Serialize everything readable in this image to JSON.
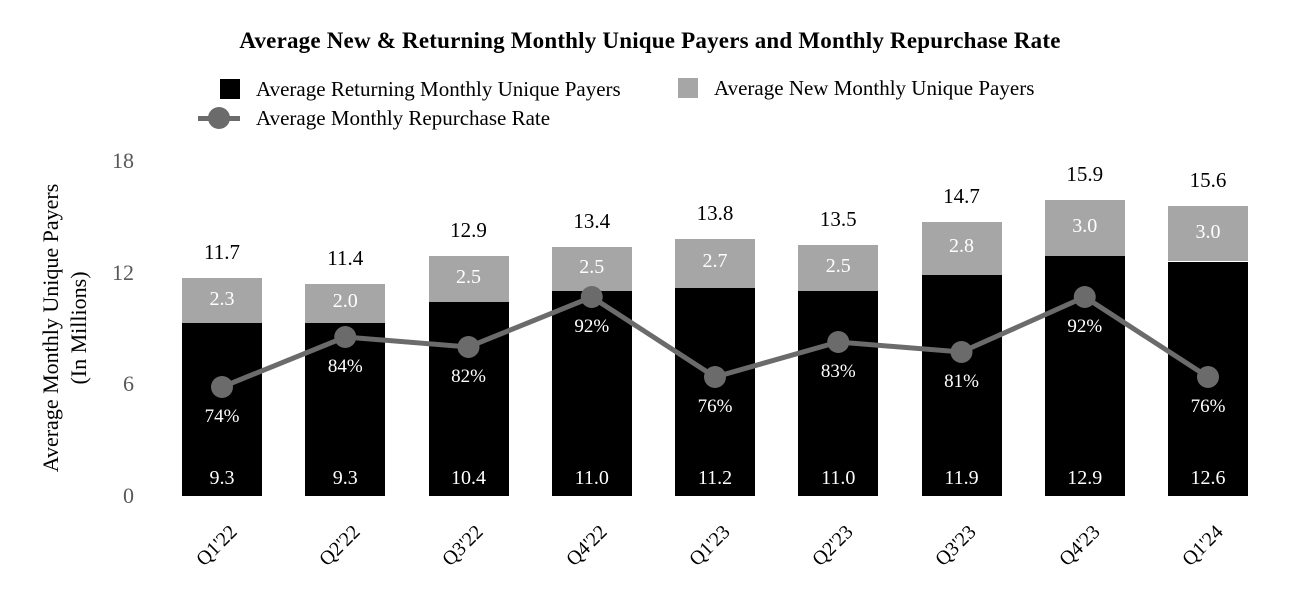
{
  "title": "Average New & Returning Monthly Unique Payers and Monthly Repurchase Rate",
  "legend": {
    "returning": "Average Returning Monthly Unique Payers",
    "new": "Average New Monthly Unique Payers",
    "repurchase": "Average Monthly Repurchase Rate"
  },
  "y_axis": {
    "title_line1": "Average Monthly Unique Payers",
    "title_line2": "(In Millions)",
    "ticks": [
      18,
      12,
      6,
      0
    ],
    "range": [
      0,
      18
    ]
  },
  "colors": {
    "returning_bar": "#000000",
    "new_bar": "#a6a6a6",
    "repurchase_line": "#6b6b6b",
    "tick_text": "#595959",
    "inside_label_text": "#ffffff"
  },
  "chart_data": {
    "type": "combo: stacked-bar + line",
    "title": "Average New & Returning Monthly Unique Payers and Monthly Repurchase Rate",
    "ylabel": "Average Monthly Unique Payers (In Millions)",
    "ylim": [
      0,
      18
    ],
    "grid": false,
    "legend_position": "top",
    "categories": [
      "Q1'22",
      "Q2'22",
      "Q3'22",
      "Q4'22",
      "Q1'23",
      "Q2'23",
      "Q3'23",
      "Q4'23",
      "Q1'24"
    ],
    "series": [
      {
        "name": "Average Returning Monthly Unique Payers",
        "type": "bar",
        "color": "#000000",
        "values": [
          9.3,
          9.3,
          10.4,
          11.0,
          11.2,
          11.0,
          11.9,
          12.9,
          12.6
        ]
      },
      {
        "name": "Average New Monthly Unique Payers",
        "type": "bar",
        "color": "#a6a6a6",
        "values": [
          2.3,
          2.0,
          2.5,
          2.5,
          2.7,
          2.5,
          2.8,
          3.0,
          3.0
        ]
      },
      {
        "name": "Average Monthly Repurchase Rate",
        "type": "line",
        "color": "#6b6b6b",
        "unit": "%",
        "values": [
          74,
          84,
          82,
          92,
          76,
          83,
          81,
          92,
          76
        ]
      }
    ],
    "totals": [
      11.7,
      11.4,
      12.9,
      13.4,
      13.8,
      13.5,
      14.7,
      15.9,
      15.6
    ]
  }
}
